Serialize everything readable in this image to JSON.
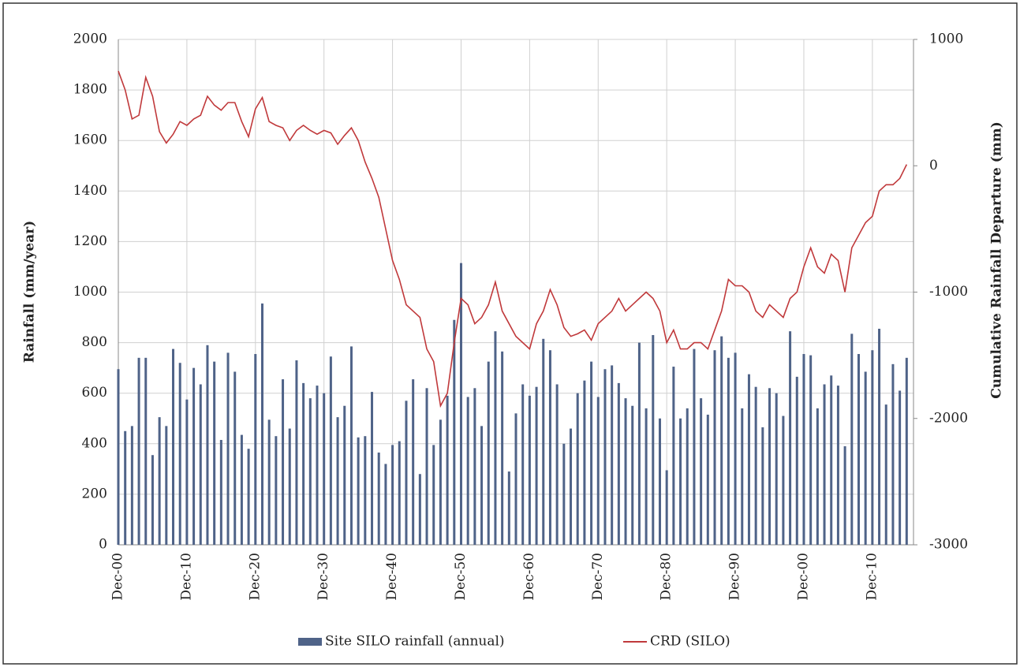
{
  "chart_data": {
    "type": "bar",
    "y_label": "Rainfall (mm/year)",
    "y2_label": "Cumulative Rainfall Departure (mm)",
    "categories": [
      "Dec-00",
      null,
      null,
      null,
      null,
      null,
      null,
      null,
      null,
      null,
      "Dec-10",
      null,
      null,
      null,
      null,
      null,
      null,
      null,
      null,
      null,
      "Dec-20",
      null,
      null,
      null,
      null,
      null,
      null,
      null,
      null,
      null,
      "Dec-30",
      null,
      null,
      null,
      null,
      null,
      null,
      null,
      null,
      null,
      "Dec-40",
      null,
      null,
      null,
      null,
      null,
      null,
      null,
      null,
      null,
      "Dec-50",
      null,
      null,
      null,
      null,
      null,
      null,
      null,
      null,
      null,
      "Dec-60",
      null,
      null,
      null,
      null,
      null,
      null,
      null,
      null,
      null,
      "Dec-70",
      null,
      null,
      null,
      null,
      null,
      null,
      null,
      null,
      null,
      "Dec-80",
      null,
      null,
      null,
      null,
      null,
      null,
      null,
      null,
      null,
      "Dec-90",
      null,
      null,
      null,
      null,
      null,
      null,
      null,
      null,
      null,
      "Dec-00",
      null,
      null,
      null,
      null,
      null,
      null,
      null,
      null,
      null,
      "Dec-10",
      null,
      null,
      null,
      null,
      null
    ],
    "series": [
      {
        "name": "Site SILO rainfall (annual)",
        "type": "bar",
        "color": "#4f6388",
        "values": [
          695,
          450,
          470,
          740,
          740,
          355,
          505,
          470,
          775,
          720,
          575,
          700,
          635,
          790,
          725,
          415,
          760,
          685,
          435,
          380,
          755,
          955,
          495,
          430,
          655,
          460,
          730,
          640,
          580,
          630,
          600,
          745,
          505,
          550,
          785,
          425,
          430,
          605,
          365,
          320,
          395,
          410,
          570,
          655,
          280,
          620,
          395,
          495,
          590,
          890,
          1115,
          585,
          620,
          470,
          725,
          845,
          765,
          290,
          520,
          635,
          590,
          625,
          815,
          770,
          635,
          400,
          460,
          600,
          650,
          725,
          585,
          695,
          710,
          640,
          580,
          550,
          800,
          540,
          830,
          500,
          295,
          705,
          500,
          540,
          775,
          580,
          515,
          770,
          825,
          740,
          760,
          540,
          675,
          625,
          465,
          620,
          600,
          510,
          845,
          665,
          755,
          750,
          540,
          635,
          670,
          630,
          390,
          835,
          755,
          685,
          770,
          855,
          555,
          715,
          610,
          740
        ]
      },
      {
        "name": "CRD (SILO)",
        "type": "line",
        "axis": "y2",
        "color": "#c0393b",
        "values": [
          750,
          600,
          370,
          400,
          700,
          550,
          270,
          180,
          250,
          350,
          320,
          370,
          400,
          550,
          480,
          440,
          500,
          500,
          350,
          230,
          450,
          540,
          350,
          320,
          300,
          200,
          280,
          320,
          280,
          250,
          280,
          260,
          170,
          240,
          300,
          200,
          30,
          -100,
          -250,
          -500,
          -750,
          -900,
          -1100,
          -1150,
          -1200,
          -1450,
          -1550,
          -1900,
          -1800,
          -1400,
          -1050,
          -1100,
          -1250,
          -1200,
          -1100,
          -920,
          -1150,
          -1250,
          -1350,
          -1400,
          -1450,
          -1250,
          -1150,
          -980,
          -1100,
          -1280,
          -1350,
          -1330,
          -1300,
          -1380,
          -1250,
          -1200,
          -1150,
          -1050,
          -1150,
          -1100,
          -1050,
          -1000,
          -1050,
          -1150,
          -1400,
          -1300,
          -1450,
          -1450,
          -1400,
          -1400,
          -1450,
          -1300,
          -1150,
          -900,
          -950,
          -950,
          -1000,
          -1150,
          -1200,
          -1100,
          -1150,
          -1200,
          -1050,
          -1000,
          -800,
          -650,
          -800,
          -850,
          -700,
          -750,
          -1000,
          -650,
          -550,
          -450,
          -400,
          -200,
          -150,
          -150,
          -100,
          10
        ]
      }
    ],
    "ylim": [
      0,
      2000
    ],
    "yticks": [
      0,
      200,
      400,
      600,
      800,
      1000,
      1200,
      1400,
      1600,
      1800,
      2000
    ],
    "y2lim": [
      -3000,
      1000
    ],
    "y2ticks": [
      -3000,
      -2000,
      -1000,
      0,
      1000
    ],
    "grid": true,
    "legend": "bottom"
  }
}
